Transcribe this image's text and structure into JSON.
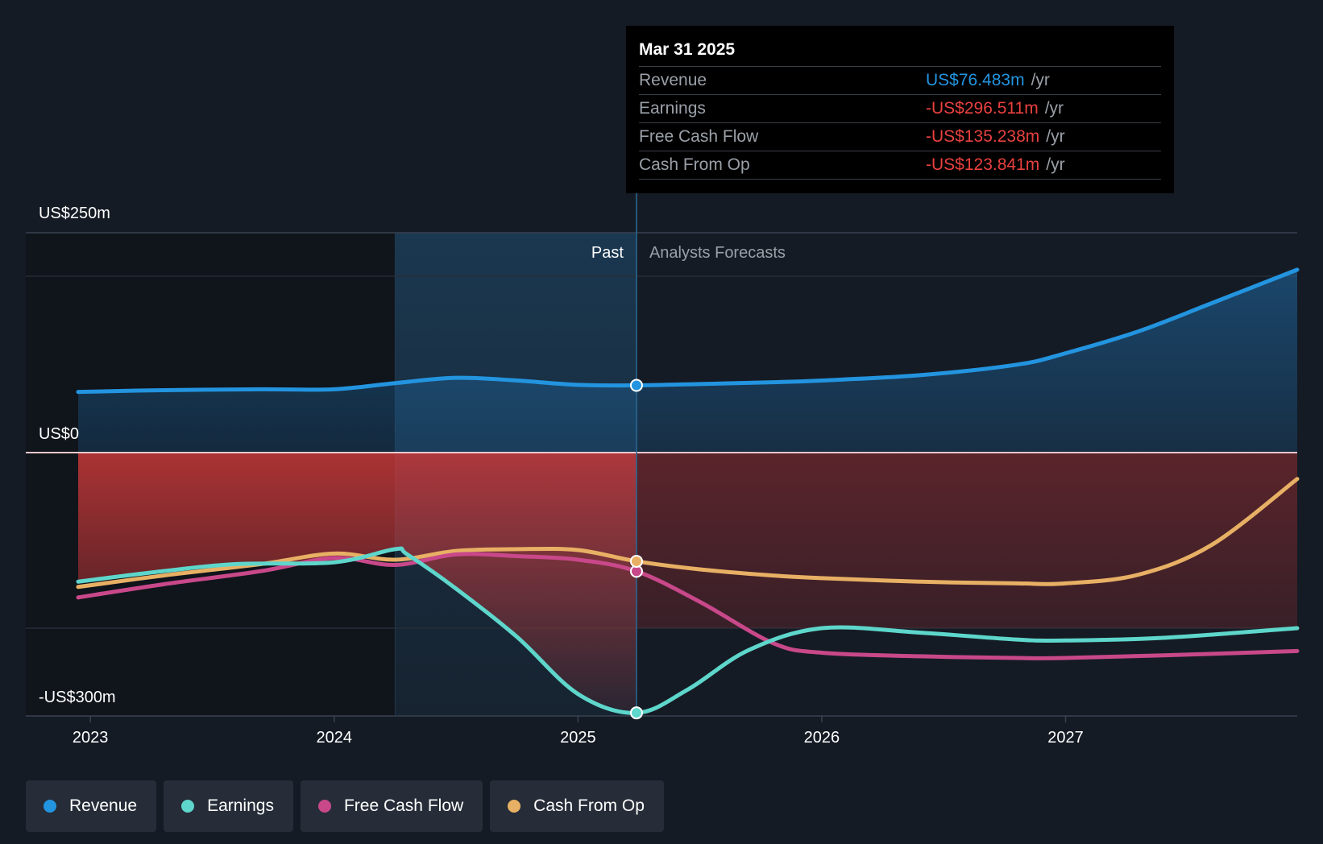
{
  "colors": {
    "revenue": "#2394df",
    "earnings": "#5ed6cb",
    "free_cash_flow": "#c8488a",
    "cash_from_op": "#e8b064",
    "negative": "#e8413f"
  },
  "chart_data": {
    "type": "line",
    "y_axis": {
      "top_label": "US$250m",
      "zero_label": "US$0",
      "bottom_label": "-US$300m",
      "ylim": [
        -300,
        250
      ]
    },
    "x_ticks": [
      2023,
      2024,
      2025,
      2026,
      2027
    ],
    "xlim": [
      2022.95,
      2027.95
    ],
    "divider_x": 2025.24,
    "shade_start_x": 2024.25,
    "past_label": "Past",
    "forecast_label": "Analysts Forecasts",
    "series": [
      {
        "name": "Revenue",
        "key": "revenue",
        "points": [
          [
            2022.95,
            69
          ],
          [
            2023.3,
            71
          ],
          [
            2023.7,
            72
          ],
          [
            2024.0,
            72
          ],
          [
            2024.25,
            79
          ],
          [
            2024.5,
            85
          ],
          [
            2024.75,
            82
          ],
          [
            2025.0,
            77
          ],
          [
            2025.24,
            76.5
          ],
          [
            2025.5,
            78
          ],
          [
            2025.8,
            80
          ],
          [
            2026.0,
            82
          ],
          [
            2026.4,
            88
          ],
          [
            2026.8,
            100
          ],
          [
            2027.0,
            113
          ],
          [
            2027.3,
            138
          ],
          [
            2027.6,
            170
          ],
          [
            2027.95,
            208
          ]
        ]
      },
      {
        "name": "Earnings",
        "key": "earnings",
        "points": [
          [
            2022.95,
            -147
          ],
          [
            2023.3,
            -135
          ],
          [
            2023.6,
            -127
          ],
          [
            2024.0,
            -125
          ],
          [
            2024.25,
            -110
          ],
          [
            2024.3,
            -116
          ],
          [
            2024.5,
            -155
          ],
          [
            2024.75,
            -210
          ],
          [
            2025.0,
            -275
          ],
          [
            2025.24,
            -296.5
          ],
          [
            2025.45,
            -270
          ],
          [
            2025.7,
            -225
          ],
          [
            2026.0,
            -200
          ],
          [
            2026.4,
            -205
          ],
          [
            2026.8,
            -213
          ],
          [
            2027.0,
            -214
          ],
          [
            2027.4,
            -211
          ],
          [
            2027.95,
            -200
          ]
        ]
      },
      {
        "name": "Free Cash Flow",
        "key": "free_cash_flow",
        "points": [
          [
            2022.95,
            -165
          ],
          [
            2023.3,
            -150
          ],
          [
            2023.7,
            -135
          ],
          [
            2024.0,
            -120
          ],
          [
            2024.25,
            -128
          ],
          [
            2024.5,
            -116
          ],
          [
            2024.75,
            -118
          ],
          [
            2025.0,
            -122
          ],
          [
            2025.24,
            -135.2
          ],
          [
            2025.5,
            -170
          ],
          [
            2025.8,
            -217
          ],
          [
            2026.0,
            -228
          ],
          [
            2026.4,
            -232
          ],
          [
            2026.8,
            -234
          ],
          [
            2027.0,
            -234
          ],
          [
            2027.4,
            -231
          ],
          [
            2027.95,
            -226
          ]
        ]
      },
      {
        "name": "Cash From Op",
        "key": "cash_from_op",
        "points": [
          [
            2022.95,
            -153
          ],
          [
            2023.3,
            -140
          ],
          [
            2023.7,
            -127
          ],
          [
            2024.0,
            -115
          ],
          [
            2024.25,
            -122
          ],
          [
            2024.5,
            -112
          ],
          [
            2024.75,
            -110
          ],
          [
            2025.0,
            -111
          ],
          [
            2025.24,
            -123.8
          ],
          [
            2025.5,
            -133
          ],
          [
            2025.8,
            -140
          ],
          [
            2026.0,
            -143
          ],
          [
            2026.4,
            -147
          ],
          [
            2026.8,
            -149
          ],
          [
            2027.0,
            -149
          ],
          [
            2027.3,
            -139
          ],
          [
            2027.6,
            -105
          ],
          [
            2027.95,
            -30
          ]
        ]
      }
    ]
  },
  "tooltip": {
    "date": "Mar 31 2025",
    "rows": [
      {
        "label": "Revenue",
        "value": "US$76.483m",
        "unit": "/yr",
        "color": "#2394df"
      },
      {
        "label": "Earnings",
        "value": "-US$296.511m",
        "unit": "/yr",
        "color": "#e8413f"
      },
      {
        "label": "Free Cash Flow",
        "value": "-US$135.238m",
        "unit": "/yr",
        "color": "#e8413f"
      },
      {
        "label": "Cash From Op",
        "value": "-US$123.841m",
        "unit": "/yr",
        "color": "#e8413f"
      }
    ]
  },
  "legend": [
    {
      "label": "Revenue",
      "color": "#2394df"
    },
    {
      "label": "Earnings",
      "color": "#5ed6cb"
    },
    {
      "label": "Free Cash Flow",
      "color": "#c8488a"
    },
    {
      "label": "Cash From Op",
      "color": "#e8b064"
    }
  ]
}
